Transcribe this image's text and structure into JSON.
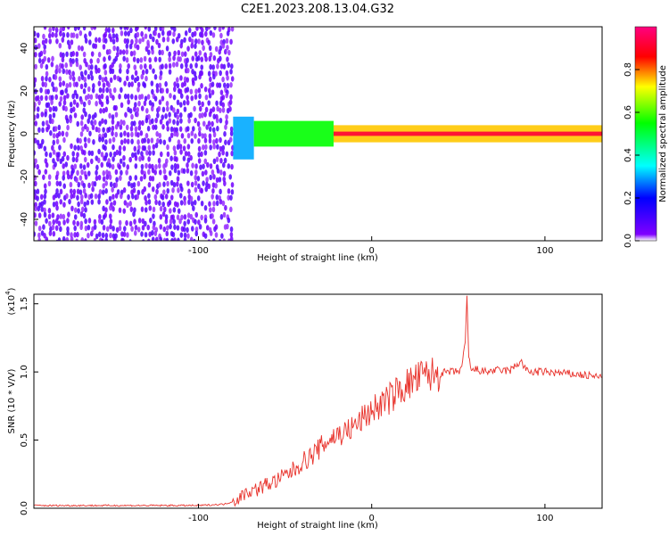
{
  "title": "C2E1.2023.208.13.04.G32",
  "colors": {
    "snr_line": "#e8312a",
    "axis": "#000000",
    "background": "#ffffff",
    "colorscale": [
      "#ffffff",
      "#8000ff",
      "#0000ff",
      "#00ffff",
      "#00ff00",
      "#ffff00",
      "#ff0000",
      "#ff0080"
    ]
  },
  "chart_data": [
    {
      "type": "heatmap",
      "xlabel": "Height of straight line (km)",
      "ylabel": "Frequency (Hz)",
      "xlim": [
        -195,
        133
      ],
      "ylim": [
        -50,
        50
      ],
      "x_ticks": [
        -100,
        0,
        100
      ],
      "x_tick_labels": [
        "-100",
        "0",
        "100"
      ],
      "y_ticks": [
        -40,
        -20,
        0,
        20,
        40
      ],
      "y_tick_labels": [
        "-40",
        "-20",
        "0",
        "20",
        "40"
      ],
      "colorbar": {
        "label": "Normalized spectral amplitude",
        "range": [
          0,
          1
        ],
        "ticks": [
          0.0,
          0.2,
          0.4,
          0.6,
          0.8
        ],
        "tick_labels": [
          "0.0",
          "0.2",
          "0.4",
          "0.6",
          "0.8"
        ]
      },
      "regions": [
        {
          "x": [
            -195,
            -80
          ],
          "freq": [
            -50,
            50
          ],
          "amplitude": 0.05,
          "description": "noise"
        },
        {
          "x": [
            -80,
            -68
          ],
          "freq": [
            -12,
            8
          ],
          "amplitude": 0.3
        },
        {
          "x": [
            -68,
            -22
          ],
          "freq": [
            -6,
            6
          ],
          "amplitude": 0.55
        },
        {
          "x": [
            -22,
            133
          ],
          "freq": [
            -4,
            4
          ],
          "amplitude": 0.75
        },
        {
          "x": [
            -22,
            133
          ],
          "freq": [
            -1,
            1
          ],
          "amplitude": 0.92
        }
      ]
    },
    {
      "type": "line",
      "xlabel": "Height of straight line (km)",
      "ylabel": "SNR (10 * V/V)",
      "ylabel_multiplier": "(x10",
      "ylabel_multiplier_exp": "4",
      "ylabel_multiplier_close": ")",
      "xlim": [
        -195,
        133
      ],
      "ylim": [
        0,
        1.57
      ],
      "x_ticks": [
        -100,
        0,
        100
      ],
      "x_tick_labels": [
        "-100",
        "0",
        "100"
      ],
      "y_ticks": [
        0.0,
        0.5,
        1.0,
        1.5
      ],
      "y_tick_labels": [
        "0.0",
        "0.5",
        "1.0",
        "1.5"
      ],
      "series": [
        {
          "x": [
            -195,
            -180,
            -160,
            -140,
            -120,
            -100,
            -85,
            -78,
            -72,
            -66,
            -60,
            -55,
            -50,
            -45,
            -40,
            -35,
            -30,
            -25,
            -20,
            -15,
            -10,
            -5,
            0,
            5,
            10,
            15,
            20,
            25,
            30,
            35,
            40,
            45,
            50,
            52,
            54,
            55,
            56,
            58,
            60,
            65,
            70,
            80,
            86,
            90,
            100,
            110,
            120,
            133
          ],
          "values": [
            0.02,
            0.02,
            0.02,
            0.02,
            0.02,
            0.02,
            0.03,
            0.06,
            0.12,
            0.14,
            0.18,
            0.2,
            0.24,
            0.28,
            0.34,
            0.38,
            0.44,
            0.5,
            0.54,
            0.56,
            0.6,
            0.66,
            0.72,
            0.76,
            0.8,
            0.86,
            0.9,
            0.94,
            0.97,
            0.98,
            0.99,
            1.0,
            1.0,
            1.04,
            1.2,
            1.55,
            1.1,
            1.0,
            1.02,
            1.0,
            1.01,
            1.01,
            1.08,
            1.0,
            1.0,
            0.99,
            0.98,
            0.96
          ]
        }
      ]
    }
  ]
}
